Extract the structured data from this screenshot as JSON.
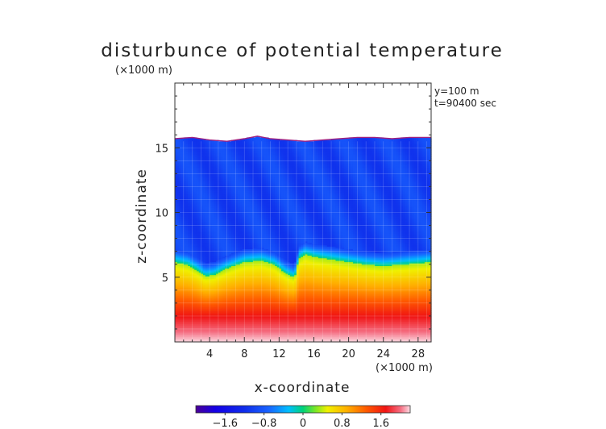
{
  "chart_data": {
    "type": "heatmap",
    "title": "disturbunce of potential temperature",
    "scale_note_top": "(×1000 m)",
    "info_lines": [
      "y=100 m",
      "t=90400 sec"
    ],
    "xlabel": "x-coordinate",
    "ylabel": "z-coordinate",
    "x_unit_label": "(×1000 m)",
    "xlim": [
      0,
      29.5
    ],
    "ylim": [
      0,
      20
    ],
    "xticks": [
      4,
      8,
      12,
      16,
      20,
      24,
      28
    ],
    "yticks": [
      5,
      10,
      15
    ],
    "colorbar": {
      "range": [
        -2.2,
        2.2
      ],
      "ticks": [
        -1.6,
        -0.8,
        0,
        0.8,
        1.6
      ],
      "tick_labels": [
        "−1.6",
        "−0.8",
        "0",
        "0.8",
        "1.6"
      ]
    },
    "fields": {
      "top_boundary_km": [
        [
          0,
          15.7
        ],
        [
          2,
          15.8
        ],
        [
          4,
          15.6
        ],
        [
          6,
          15.5
        ],
        [
          8,
          15.7
        ],
        [
          9.5,
          15.9
        ],
        [
          11,
          15.7
        ],
        [
          13,
          15.6
        ],
        [
          15,
          15.5
        ],
        [
          17,
          15.6
        ],
        [
          19,
          15.7
        ],
        [
          21,
          15.8
        ],
        [
          23,
          15.8
        ],
        [
          25,
          15.7
        ],
        [
          27,
          15.8
        ],
        [
          29.5,
          15.8
        ]
      ],
      "front_height_km": [
        [
          0,
          6.2
        ],
        [
          1.5,
          6.0
        ],
        [
          2.5,
          5.6
        ],
        [
          3.5,
          5.1
        ],
        [
          4.5,
          5.2
        ],
        [
          6,
          5.7
        ],
        [
          8,
          6.2
        ],
        [
          10,
          6.3
        ],
        [
          11.5,
          6.0
        ],
        [
          12.8,
          5.3
        ],
        [
          13.8,
          5.0
        ],
        [
          14.3,
          6.5
        ],
        [
          15,
          6.8
        ],
        [
          16,
          6.6
        ],
        [
          18,
          6.4
        ],
        [
          20,
          6.2
        ],
        [
          22,
          6.0
        ],
        [
          24,
          5.9
        ],
        [
          26,
          6.0
        ],
        [
          28,
          6.1
        ],
        [
          29.5,
          6.2
        ]
      ],
      "upper_value": -1.0,
      "value_above_front": 0.0,
      "value_at_2km": 1.7,
      "value_near_ground": 2.2
    }
  }
}
